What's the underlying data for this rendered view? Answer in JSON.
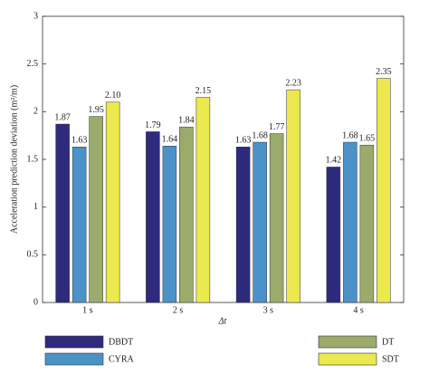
{
  "chart_data": {
    "type": "bar",
    "y_label": "Acceleration prediction deviation (m²/m)",
    "x_label": "Δt",
    "categories": [
      "1 s",
      "2 s",
      "3 s",
      "4 s"
    ],
    "series": [
      {
        "name": "DBDT",
        "color": "#2e2a7c",
        "values": [
          1.87,
          1.79,
          1.63,
          1.42
        ],
        "value_labels": [
          "1.87",
          "1.79",
          "1.63",
          "1.42"
        ]
      },
      {
        "name": "CYRA",
        "color": "#4b92c9",
        "values": [
          1.63,
          1.64,
          1.68,
          1.68
        ],
        "value_labels": [
          "1.63",
          "1.64",
          "1.68",
          "1.68"
        ]
      },
      {
        "name": "DT",
        "color": "#9bab6b",
        "values": [
          1.95,
          1.84,
          1.77,
          1.65
        ],
        "value_labels": [
          "1.95",
          "1.84",
          "1.77",
          "1.65"
        ]
      },
      {
        "name": "SDT",
        "color": "#ebe94d",
        "values": [
          2.1,
          2.15,
          2.23,
          2.35
        ],
        "value_labels": [
          "2.10",
          "2.15",
          "2.23",
          "2.35"
        ]
      }
    ],
    "ylim": [
      0,
      3
    ],
    "yticks": [
      0,
      0.5,
      1,
      1.5,
      2,
      2.5,
      3
    ],
    "legend": "bottom"
  }
}
